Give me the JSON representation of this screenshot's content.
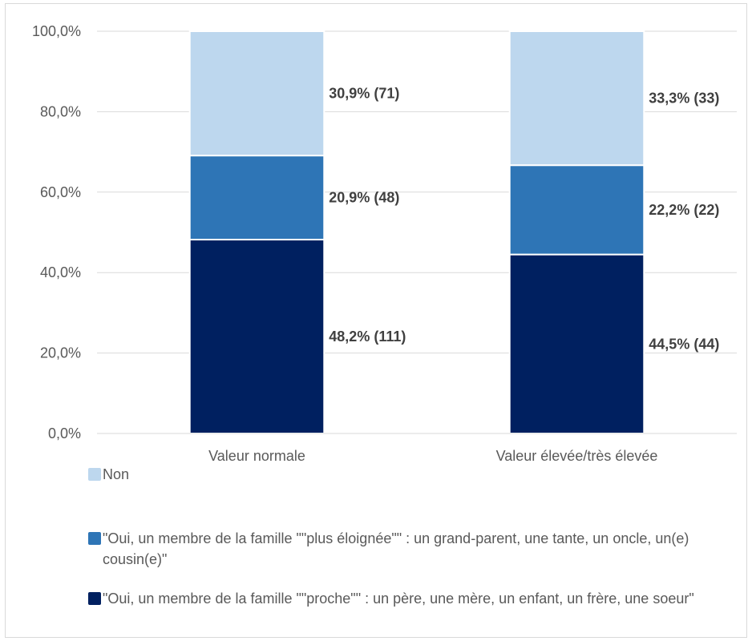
{
  "chart_data": {
    "type": "bar",
    "stacked": true,
    "categories": [
      "Valeur normale",
      "Valeur élevée/très élevée"
    ],
    "series": [
      {
        "name": "\"Oui, un membre de la famille \"\"proche\"\" : un père, une mère, un enfant, un frère, une soeur\"",
        "color": "#002060",
        "values": [
          48.2,
          44.5
        ],
        "labels": [
          "48,2% (111)",
          "44,5% (44)"
        ]
      },
      {
        "name": "\"Oui, un membre de la famille \"\"plus éloignée\"\" : un grand-parent, une tante, un oncle, un(e) cousin(e)\"",
        "color": "#2E75B6",
        "values": [
          20.9,
          22.2
        ],
        "labels": [
          "20,9% (48)",
          "22,2% (22)"
        ]
      },
      {
        "name": "Non",
        "color": "#BDD7EE",
        "values": [
          30.9,
          33.3
        ],
        "labels": [
          "30,9% (71)",
          "33,3% (33)"
        ]
      }
    ],
    "yticks": [
      "0,0%",
      "20,0%",
      "40,0%",
      "60,0%",
      "80,0%",
      "100,0%"
    ],
    "ylim": [
      0,
      100
    ],
    "grid": true,
    "legend_position": "bottom"
  }
}
